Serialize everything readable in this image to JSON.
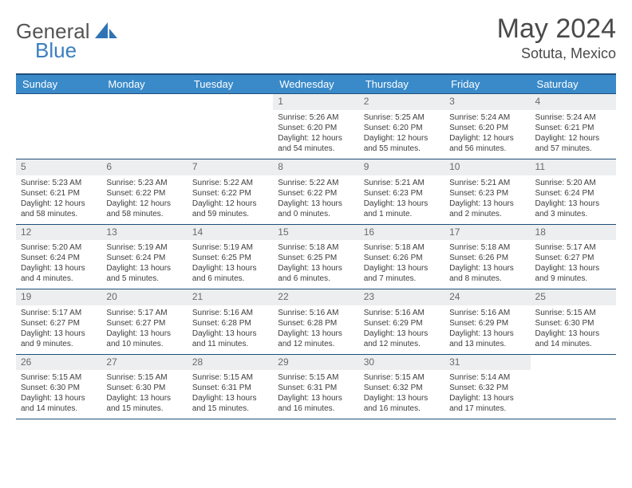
{
  "brand": {
    "general": "General",
    "blue": "Blue"
  },
  "header": {
    "month": "May 2024",
    "location": "Sotuta, Mexico"
  },
  "colors": {
    "header_bg": "#3a8ac9",
    "header_border": "#1f4e79",
    "row_border": "#1f4e79",
    "daynum_bg": "#eceeef",
    "text": "#3d3d3d",
    "brand_blue": "#3b7fbf"
  },
  "weekdays": [
    "Sunday",
    "Monday",
    "Tuesday",
    "Wednesday",
    "Thursday",
    "Friday",
    "Saturday"
  ],
  "weeks": [
    [
      null,
      null,
      null,
      {
        "n": "1",
        "sr": "5:26 AM",
        "ss": "6:20 PM",
        "dl": "12 hours and 54 minutes."
      },
      {
        "n": "2",
        "sr": "5:25 AM",
        "ss": "6:20 PM",
        "dl": "12 hours and 55 minutes."
      },
      {
        "n": "3",
        "sr": "5:24 AM",
        "ss": "6:20 PM",
        "dl": "12 hours and 56 minutes."
      },
      {
        "n": "4",
        "sr": "5:24 AM",
        "ss": "6:21 PM",
        "dl": "12 hours and 57 minutes."
      }
    ],
    [
      {
        "n": "5",
        "sr": "5:23 AM",
        "ss": "6:21 PM",
        "dl": "12 hours and 58 minutes."
      },
      {
        "n": "6",
        "sr": "5:23 AM",
        "ss": "6:22 PM",
        "dl": "12 hours and 58 minutes."
      },
      {
        "n": "7",
        "sr": "5:22 AM",
        "ss": "6:22 PM",
        "dl": "12 hours and 59 minutes."
      },
      {
        "n": "8",
        "sr": "5:22 AM",
        "ss": "6:22 PM",
        "dl": "13 hours and 0 minutes."
      },
      {
        "n": "9",
        "sr": "5:21 AM",
        "ss": "6:23 PM",
        "dl": "13 hours and 1 minute."
      },
      {
        "n": "10",
        "sr": "5:21 AM",
        "ss": "6:23 PM",
        "dl": "13 hours and 2 minutes."
      },
      {
        "n": "11",
        "sr": "5:20 AM",
        "ss": "6:24 PM",
        "dl": "13 hours and 3 minutes."
      }
    ],
    [
      {
        "n": "12",
        "sr": "5:20 AM",
        "ss": "6:24 PM",
        "dl": "13 hours and 4 minutes."
      },
      {
        "n": "13",
        "sr": "5:19 AM",
        "ss": "6:24 PM",
        "dl": "13 hours and 5 minutes."
      },
      {
        "n": "14",
        "sr": "5:19 AM",
        "ss": "6:25 PM",
        "dl": "13 hours and 6 minutes."
      },
      {
        "n": "15",
        "sr": "5:18 AM",
        "ss": "6:25 PM",
        "dl": "13 hours and 6 minutes."
      },
      {
        "n": "16",
        "sr": "5:18 AM",
        "ss": "6:26 PM",
        "dl": "13 hours and 7 minutes."
      },
      {
        "n": "17",
        "sr": "5:18 AM",
        "ss": "6:26 PM",
        "dl": "13 hours and 8 minutes."
      },
      {
        "n": "18",
        "sr": "5:17 AM",
        "ss": "6:27 PM",
        "dl": "13 hours and 9 minutes."
      }
    ],
    [
      {
        "n": "19",
        "sr": "5:17 AM",
        "ss": "6:27 PM",
        "dl": "13 hours and 9 minutes."
      },
      {
        "n": "20",
        "sr": "5:17 AM",
        "ss": "6:27 PM",
        "dl": "13 hours and 10 minutes."
      },
      {
        "n": "21",
        "sr": "5:16 AM",
        "ss": "6:28 PM",
        "dl": "13 hours and 11 minutes."
      },
      {
        "n": "22",
        "sr": "5:16 AM",
        "ss": "6:28 PM",
        "dl": "13 hours and 12 minutes."
      },
      {
        "n": "23",
        "sr": "5:16 AM",
        "ss": "6:29 PM",
        "dl": "13 hours and 12 minutes."
      },
      {
        "n": "24",
        "sr": "5:16 AM",
        "ss": "6:29 PM",
        "dl": "13 hours and 13 minutes."
      },
      {
        "n": "25",
        "sr": "5:15 AM",
        "ss": "6:30 PM",
        "dl": "13 hours and 14 minutes."
      }
    ],
    [
      {
        "n": "26",
        "sr": "5:15 AM",
        "ss": "6:30 PM",
        "dl": "13 hours and 14 minutes."
      },
      {
        "n": "27",
        "sr": "5:15 AM",
        "ss": "6:30 PM",
        "dl": "13 hours and 15 minutes."
      },
      {
        "n": "28",
        "sr": "5:15 AM",
        "ss": "6:31 PM",
        "dl": "13 hours and 15 minutes."
      },
      {
        "n": "29",
        "sr": "5:15 AM",
        "ss": "6:31 PM",
        "dl": "13 hours and 16 minutes."
      },
      {
        "n": "30",
        "sr": "5:15 AM",
        "ss": "6:32 PM",
        "dl": "13 hours and 16 minutes."
      },
      {
        "n": "31",
        "sr": "5:14 AM",
        "ss": "6:32 PM",
        "dl": "13 hours and 17 minutes."
      },
      null
    ]
  ],
  "labels": {
    "sunrise": "Sunrise: ",
    "sunset": "Sunset: ",
    "daylight": "Daylight: "
  }
}
